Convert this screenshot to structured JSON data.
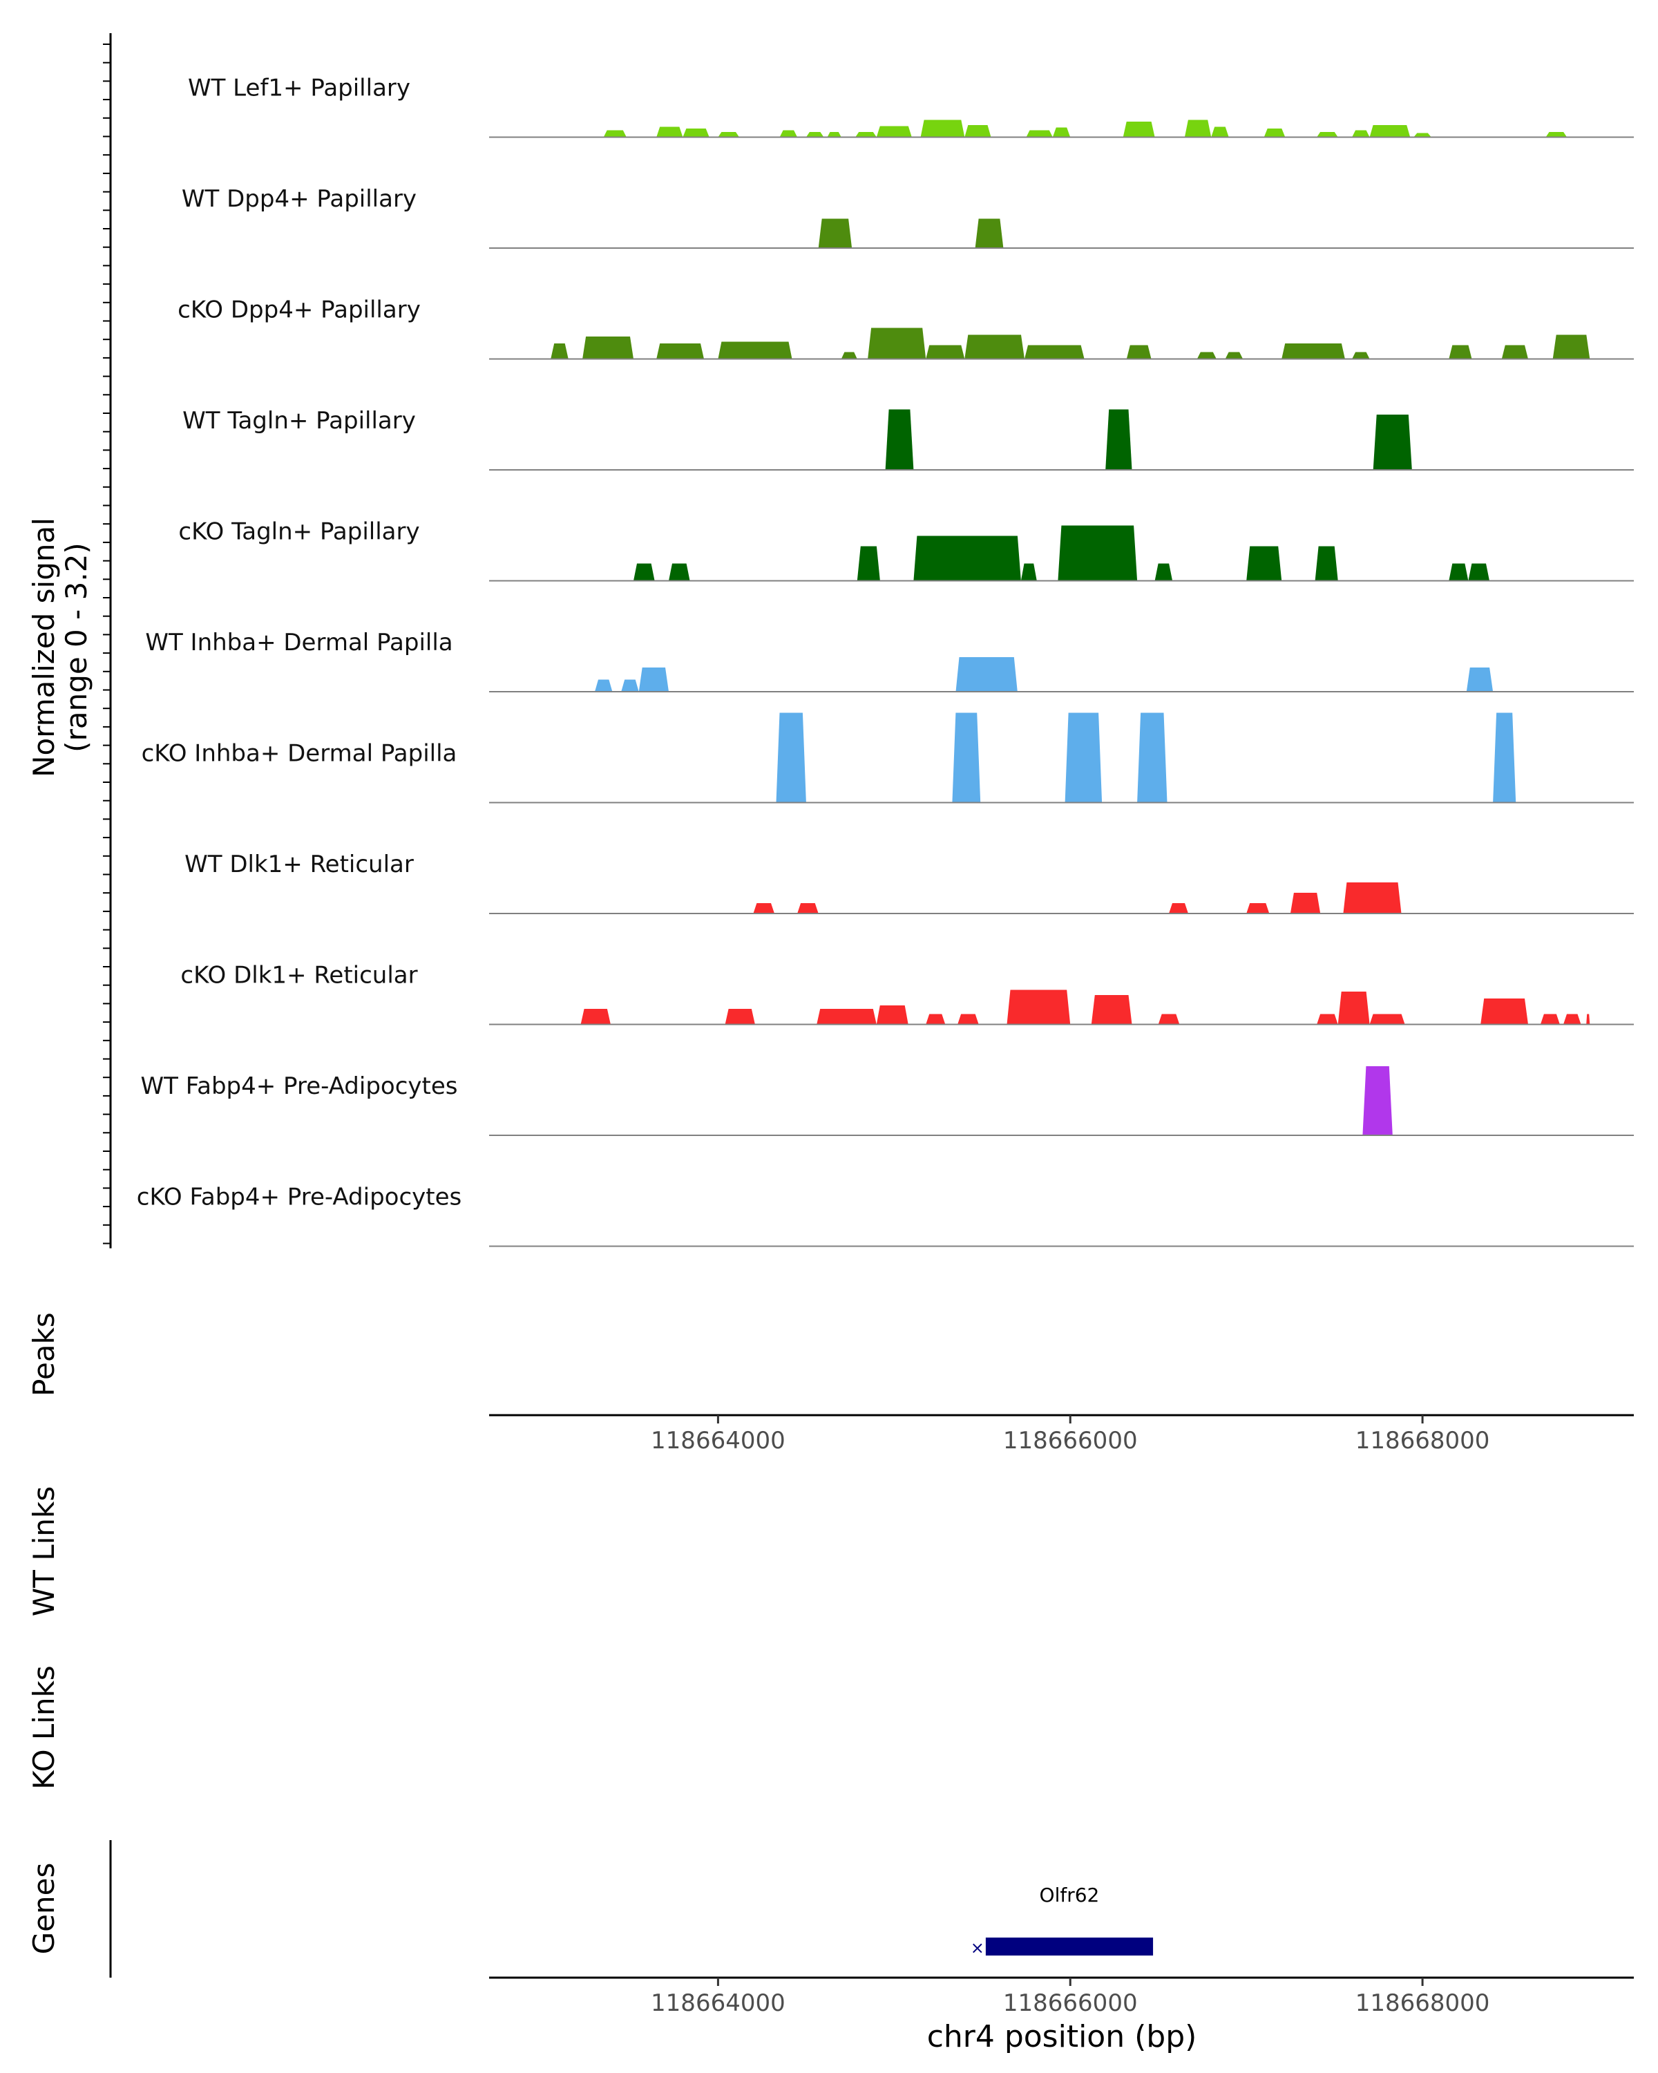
{
  "chart_data": {
    "type": "area",
    "title": "",
    "signal_axis_label": [
      "Normalized signal",
      "(range 0 - 3.2)"
    ],
    "signal_range": [
      0,
      3.2
    ],
    "region": {
      "chrom": "chr4",
      "start": 118662700,
      "end": 118669200
    },
    "xlabel": "chr4 position (bp)",
    "x_ticks": [
      118664000,
      118666000,
      118668000
    ],
    "x_tick_labels": [
      "118664000",
      "118666000",
      "118668000"
    ],
    "tracks": [
      {
        "name": "WT Lef1+ Papillary",
        "color": "#77D40F",
        "peaks": [
          [
            118663350,
            118663480,
            0.2
          ],
          [
            118663650,
            118663800,
            0.3
          ],
          [
            118663800,
            118663950,
            0.25
          ],
          [
            118664000,
            118664120,
            0.15
          ],
          [
            118664350,
            118664450,
            0.2
          ],
          [
            118664500,
            118664600,
            0.15
          ],
          [
            118664620,
            118664700,
            0.15
          ],
          [
            118664780,
            118664900,
            0.15
          ],
          [
            118664900,
            118665100,
            0.32
          ],
          [
            118665150,
            118665400,
            0.5
          ],
          [
            118665400,
            118665550,
            0.35
          ],
          [
            118665750,
            118665900,
            0.2
          ],
          [
            118665900,
            118666000,
            0.28
          ],
          [
            118666300,
            118666480,
            0.45
          ],
          [
            118666650,
            118666800,
            0.5
          ],
          [
            118666800,
            118666900,
            0.3
          ],
          [
            118667100,
            118667220,
            0.25
          ],
          [
            118667400,
            118667520,
            0.15
          ],
          [
            118667600,
            118667700,
            0.2
          ],
          [
            118667700,
            118667930,
            0.35
          ],
          [
            118667950,
            118668050,
            0.12
          ],
          [
            118668700,
            118668820,
            0.15
          ]
        ]
      },
      {
        "name": "WT Dpp4+ Papillary",
        "color": "#4E8C0E",
        "peaks": [
          [
            118664570,
            118664760,
            0.85
          ],
          [
            118665460,
            118665620,
            0.85
          ]
        ]
      },
      {
        "name": "cKO Dpp4+ Papillary",
        "color": "#4E8C0E",
        "peaks": [
          [
            118663050,
            118663150,
            0.45
          ],
          [
            118663230,
            118663520,
            0.65
          ],
          [
            118663650,
            118663920,
            0.45
          ],
          [
            118664000,
            118664420,
            0.5
          ],
          [
            118664700,
            118664790,
            0.2
          ],
          [
            118664850,
            118665180,
            0.9
          ],
          [
            118665180,
            118665400,
            0.4
          ],
          [
            118665400,
            118665740,
            0.7
          ],
          [
            118665740,
            118666080,
            0.4
          ],
          [
            118666320,
            118666460,
            0.4
          ],
          [
            118666720,
            118666830,
            0.2
          ],
          [
            118666880,
            118666980,
            0.2
          ],
          [
            118667200,
            118667560,
            0.45
          ],
          [
            118667600,
            118667700,
            0.2
          ],
          [
            118668150,
            118668280,
            0.4
          ],
          [
            118668450,
            118668600,
            0.4
          ],
          [
            118668740,
            118668950,
            0.7
          ]
        ]
      },
      {
        "name": "WT Tagln+ Papillary",
        "color": "#006400",
        "peaks": [
          [
            118664950,
            118665110,
            1.75
          ],
          [
            118666200,
            118666350,
            1.75
          ],
          [
            118667720,
            118667940,
            1.6
          ]
        ]
      },
      {
        "name": "cKO Tagln+ Papillary",
        "color": "#006400",
        "peaks": [
          [
            118663520,
            118663640,
            0.5
          ],
          [
            118663720,
            118663840,
            0.5
          ],
          [
            118664790,
            118664920,
            1.0
          ],
          [
            118665110,
            118665720,
            1.3
          ],
          [
            118665720,
            118665810,
            0.5
          ],
          [
            118665930,
            118666380,
            1.6
          ],
          [
            118666480,
            118666580,
            0.5
          ],
          [
            118667000,
            118667200,
            1.0
          ],
          [
            118667390,
            118667520,
            1.0
          ],
          [
            118668150,
            118668260,
            0.5
          ],
          [
            118668260,
            118668380,
            0.5
          ]
        ]
      },
      {
        "name": "WT Inhba+ Dermal Papilla",
        "color": "#5EAEEB",
        "peaks": [
          [
            118663300,
            118663400,
            0.35
          ],
          [
            118663450,
            118663550,
            0.35
          ],
          [
            118663550,
            118663720,
            0.7
          ],
          [
            118665350,
            118665700,
            1.0
          ],
          [
            118668250,
            118668400,
            0.7
          ]
        ]
      },
      {
        "name": "cKO Inhba+ Dermal Papilla",
        "color": "#5EAEEB",
        "peaks": [
          [
            118664330,
            118664500,
            2.6
          ],
          [
            118665330,
            118665490,
            2.6
          ],
          [
            118665970,
            118666180,
            2.6
          ],
          [
            118666380,
            118666550,
            2.6
          ],
          [
            118668400,
            118668530,
            2.6
          ]
        ]
      },
      {
        "name": "WT Dlk1+ Reticular",
        "color": "#F92A2C",
        "peaks": [
          [
            118664200,
            118664320,
            0.3
          ],
          [
            118664450,
            118664570,
            0.3
          ],
          [
            118666560,
            118666670,
            0.3
          ],
          [
            118667000,
            118667130,
            0.3
          ],
          [
            118667250,
            118667420,
            0.6
          ],
          [
            118667550,
            118667880,
            0.9
          ]
        ]
      },
      {
        "name": "cKO Dlk1+ Reticular",
        "color": "#F92A2C",
        "peaks": [
          [
            118663220,
            118663390,
            0.45
          ],
          [
            118664040,
            118664210,
            0.45
          ],
          [
            118664560,
            118664900,
            0.45
          ],
          [
            118664900,
            118665080,
            0.55
          ],
          [
            118665180,
            118665290,
            0.3
          ],
          [
            118665360,
            118665480,
            0.3
          ],
          [
            118665640,
            118666000,
            1.0
          ],
          [
            118666120,
            118666350,
            0.85
          ],
          [
            118666500,
            118666620,
            0.3
          ],
          [
            118667400,
            118667520,
            0.3
          ],
          [
            118667520,
            118667700,
            0.95
          ],
          [
            118667700,
            118667900,
            0.3
          ],
          [
            118668330,
            118668600,
            0.75
          ],
          [
            118668670,
            118668780,
            0.3
          ],
          [
            118668800,
            118668900,
            0.3
          ],
          [
            118668930,
            118668950,
            0.3
          ]
        ]
      },
      {
        "name": "WT Fabp4+ Pre-Adipocytes",
        "color": "#B137EB",
        "peaks": [
          [
            118667660,
            118667830,
            2.0
          ]
        ]
      },
      {
        "name": "cKO Fabp4+ Pre-Adipocytes",
        "color": "#B137EB",
        "peaks": []
      }
    ],
    "panels": {
      "peaks": "Peaks",
      "wt_links": "WT Links",
      "ko_links": "KO Links",
      "genes": "Genes"
    },
    "genes": [
      {
        "name": "Olfr62",
        "start": 118665520,
        "end": 118666470,
        "color": "#00007F"
      }
    ]
  }
}
